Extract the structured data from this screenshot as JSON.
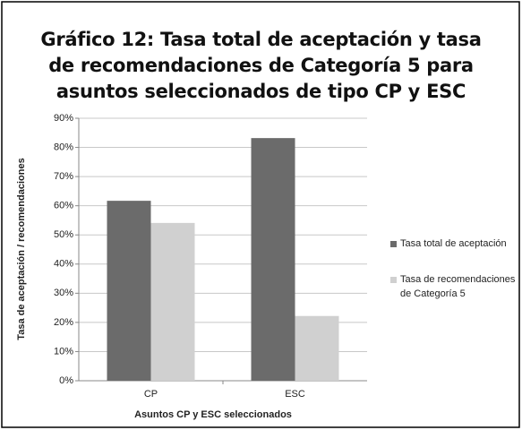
{
  "chart_data": {
    "type": "bar",
    "title": "Gráfico 12: Tasa total de aceptación y tasa de recomendaciones de Categoría 5 para asuntos seleccionados de tipo CP y ESC",
    "x_label": "Asuntos CP y ESC seleccionados",
    "y_label": "Tasa de aceptación / recomendaciones",
    "categories": [
      "CP",
      "ESC"
    ],
    "series": [
      {
        "name": "Tasa total de aceptación",
        "color": "#6b6b6b",
        "values": [
          61.7,
          83.2
        ]
      },
      {
        "name": "Tasa de recomendaciones de Categoría 5",
        "color": "#d0d0d0",
        "values": [
          54.1,
          22.2
        ]
      }
    ],
    "ylim": [
      0,
      90
    ],
    "yticks": [
      {
        "value": 0,
        "label": "0%"
      },
      {
        "value": 10,
        "label": "10%"
      },
      {
        "value": 20,
        "label": "20%"
      },
      {
        "value": 30,
        "label": "30%"
      },
      {
        "value": 40,
        "label": "40%"
      },
      {
        "value": 50,
        "label": "50%"
      },
      {
        "value": 60,
        "label": "60%"
      },
      {
        "value": 70,
        "label": "70%"
      },
      {
        "value": 80,
        "label": "80%"
      },
      {
        "value": 90,
        "label": "90%"
      }
    ],
    "grid": true,
    "legend": "right"
  }
}
